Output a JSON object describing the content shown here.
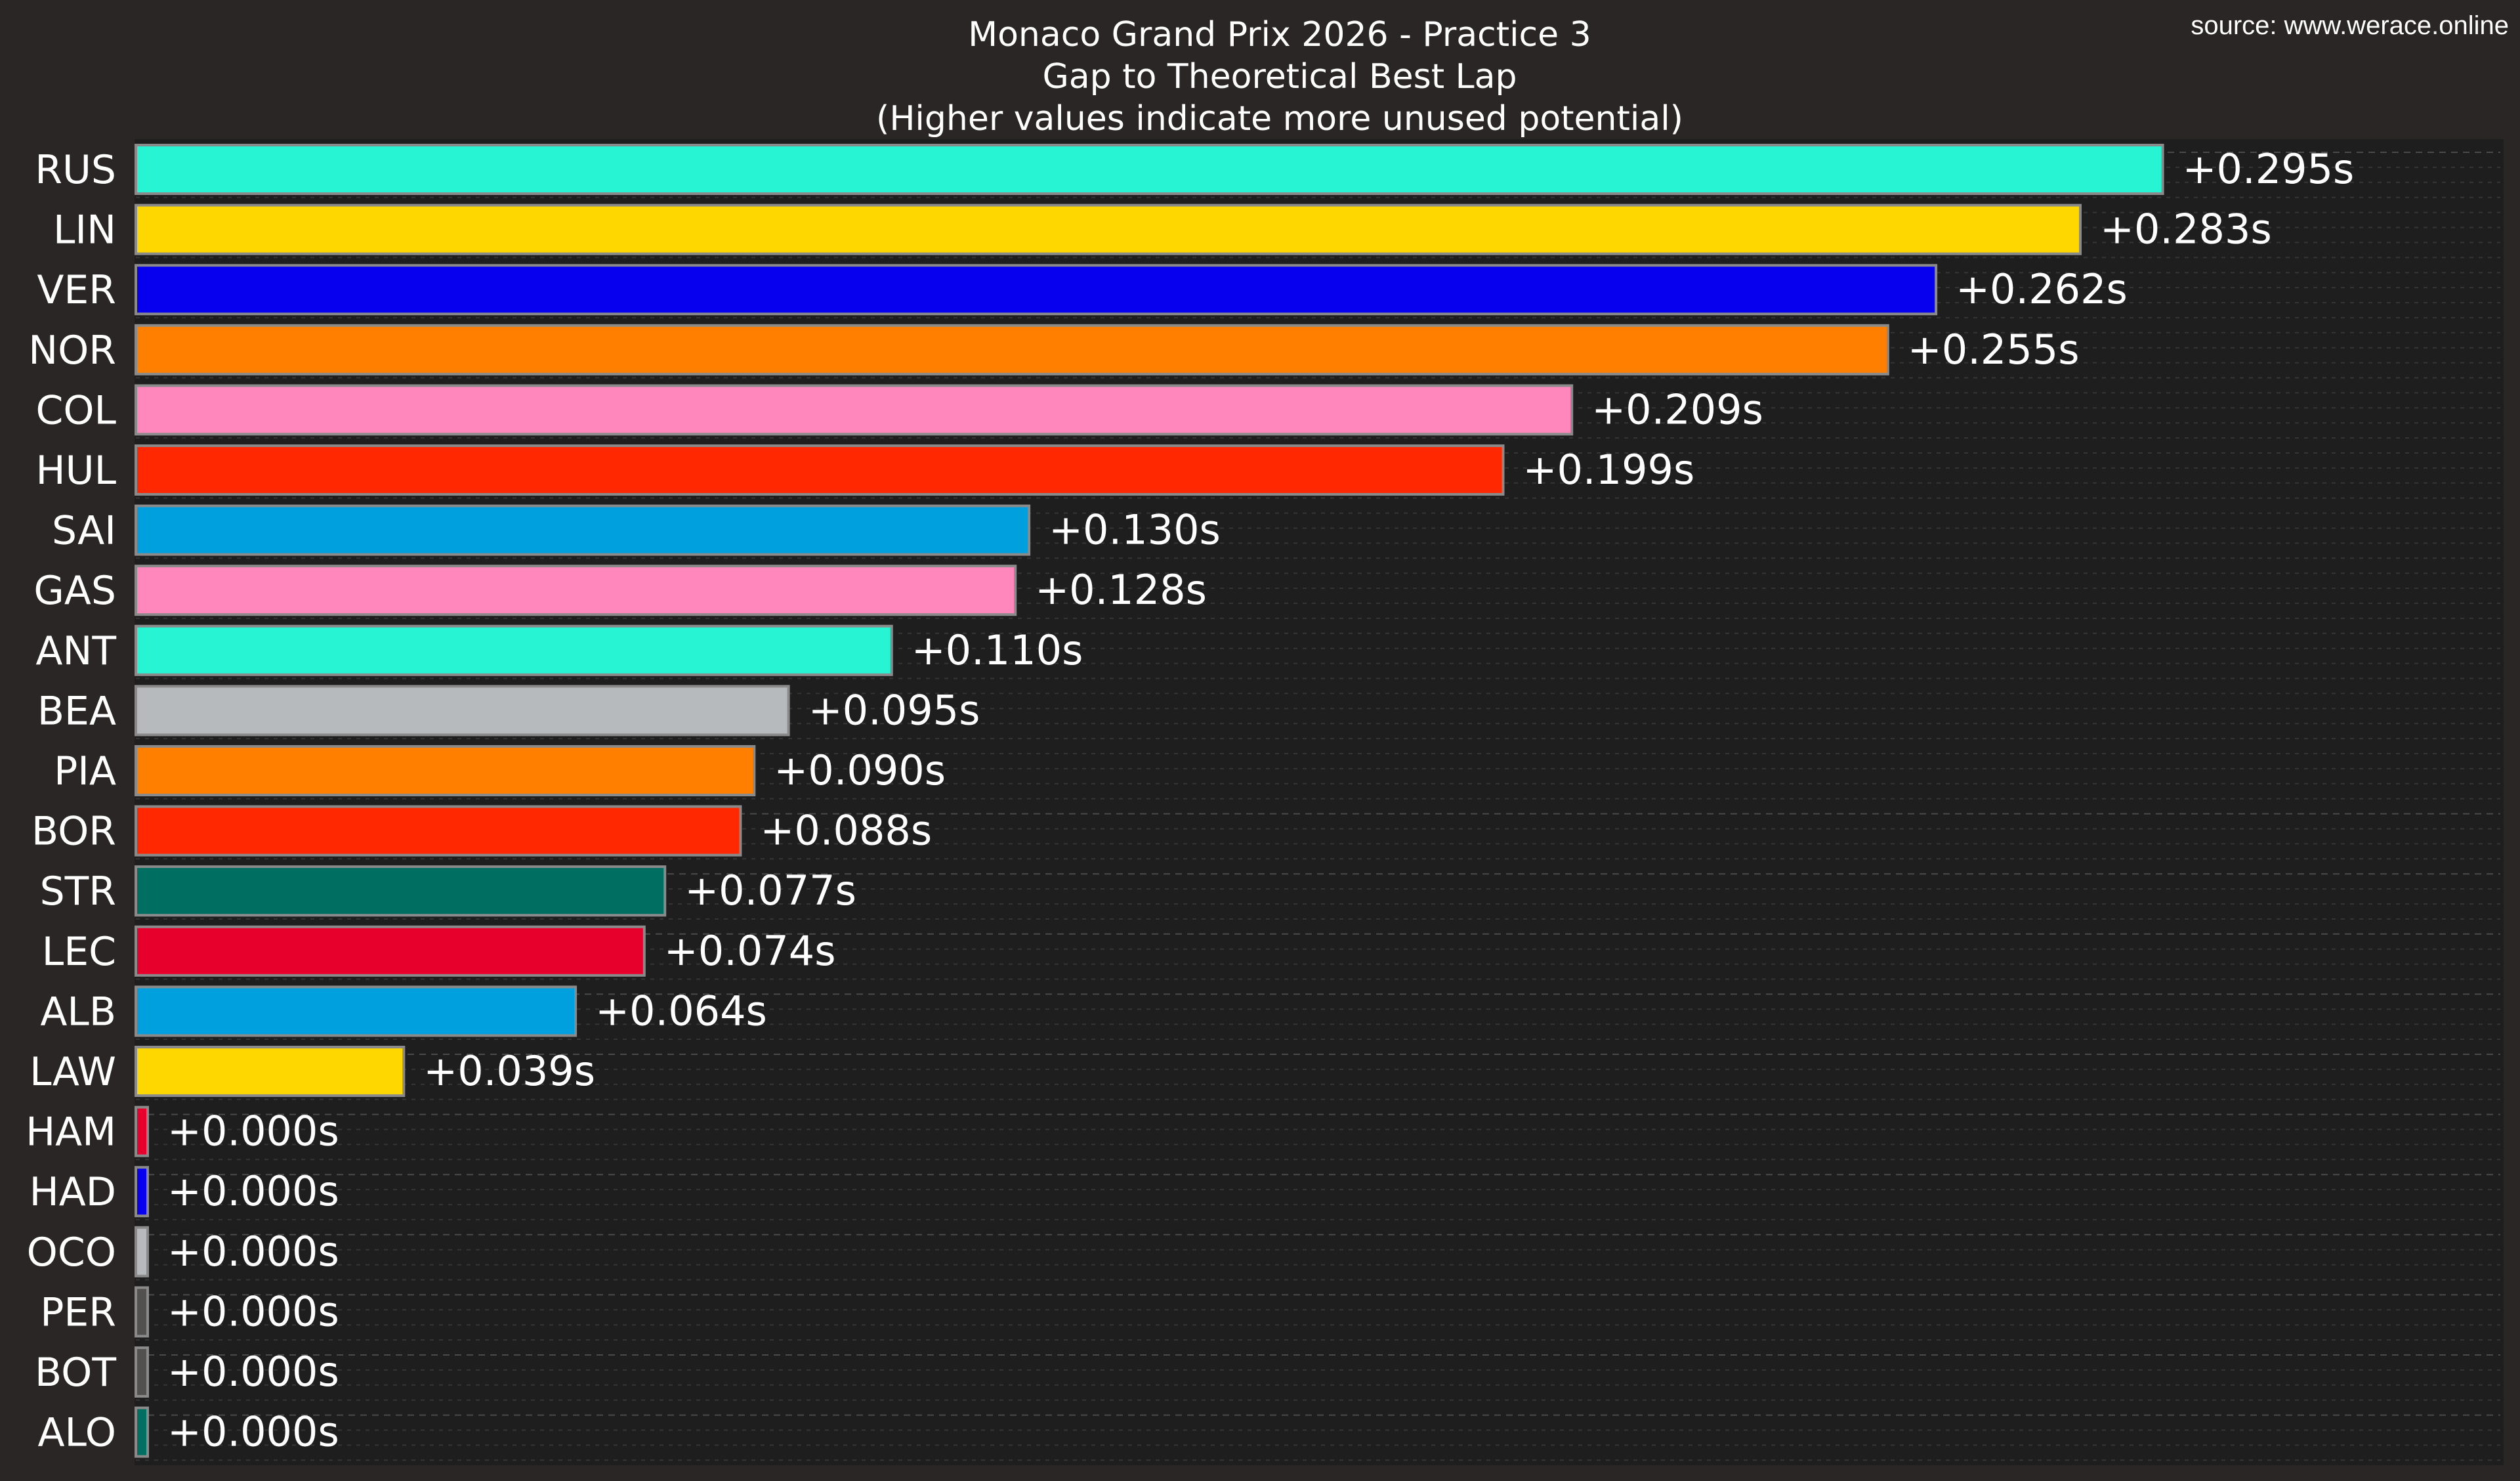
{
  "source": "source: www.werace.online",
  "chart_data": {
    "type": "bar",
    "orientation": "horizontal",
    "title": [
      "Monaco Grand Prix 2026 - Practice 3",
      "Gap to Theoretical Best Lap",
      "(Higher values indicate more unused potential)"
    ],
    "xlabel": "",
    "ylabel": "",
    "xlim": [
      0,
      0.3
    ],
    "grid": true,
    "background": "#1e1e1e",
    "categories": [
      "RUS",
      "LIN",
      "VER",
      "NOR",
      "COL",
      "HUL",
      "SAI",
      "GAS",
      "ANT",
      "BEA",
      "PIA",
      "BOR",
      "STR",
      "LEC",
      "ALB",
      "LAW",
      "HAM",
      "HAD",
      "OCO",
      "PER",
      "BOT",
      "ALO"
    ],
    "values": [
      0.295,
      0.283,
      0.262,
      0.255,
      0.209,
      0.199,
      0.13,
      0.128,
      0.11,
      0.095,
      0.09,
      0.088,
      0.077,
      0.074,
      0.064,
      0.039,
      0.0,
      0.0,
      0.0,
      0.0,
      0.0,
      0.0
    ],
    "labels": [
      "+0.295s",
      "+0.283s",
      "+0.262s",
      "+0.255s",
      "+0.209s",
      "+0.199s",
      "+0.130s",
      "+0.128s",
      "+0.110s",
      "+0.095s",
      "+0.090s",
      "+0.088s",
      "+0.077s",
      "+0.074s",
      "+0.064s",
      "+0.039s",
      "+0.000s",
      "+0.000s",
      "+0.000s",
      "+0.000s",
      "+0.000s",
      "+0.000s"
    ],
    "colors": [
      "#27F4D2",
      "#FFD700",
      "#0600EF",
      "#FF8000",
      "#FF87BC",
      "#FF2800",
      "#00A0DE",
      "#FF87BC",
      "#27F4D2",
      "#B6BABD",
      "#FF8000",
      "#FF2800",
      "#006F62",
      "#E8002D",
      "#00A0DE",
      "#FFD700",
      "#E8002D",
      "#0600EF",
      "#B6BABD",
      "#52514F",
      "#52514F",
      "#006F62"
    ]
  }
}
